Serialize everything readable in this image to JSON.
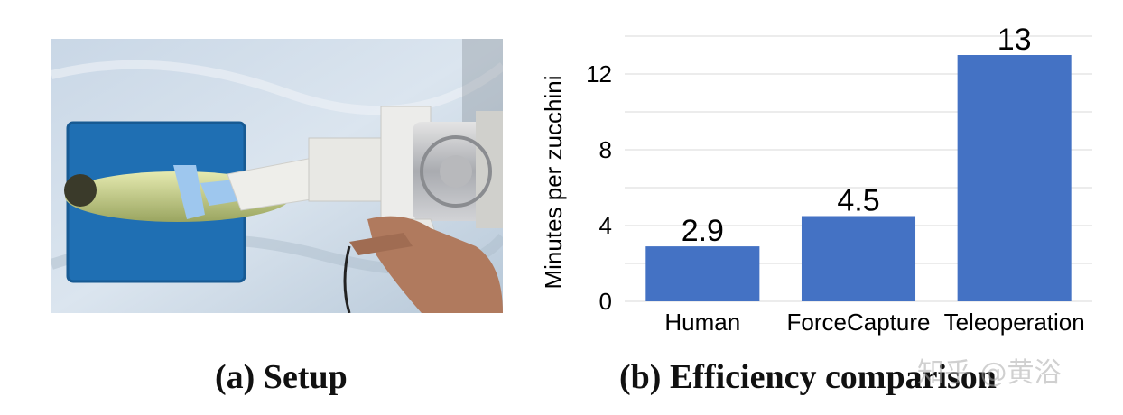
{
  "captions": {
    "setup": "(a) Setup",
    "efficiency": "(b) Efficiency comparison"
  },
  "watermark": "知乎 @黄浴",
  "colors": {
    "bar": "#4472c4",
    "grid": "#d9d9d9",
    "text": "#000000"
  },
  "chart_data": {
    "type": "bar",
    "categories": [
      "Human",
      "ForceCapture",
      "Teleoperation"
    ],
    "values": [
      2.9,
      4.5,
      13
    ],
    "data_labels": [
      "2.9",
      "4.5",
      "13"
    ],
    "title": "",
    "xlabel": "",
    "ylabel": "Minutes per zucchini",
    "ylim": [
      0,
      14
    ],
    "yticks": [
      0,
      4,
      8,
      12
    ],
    "grid": true
  }
}
